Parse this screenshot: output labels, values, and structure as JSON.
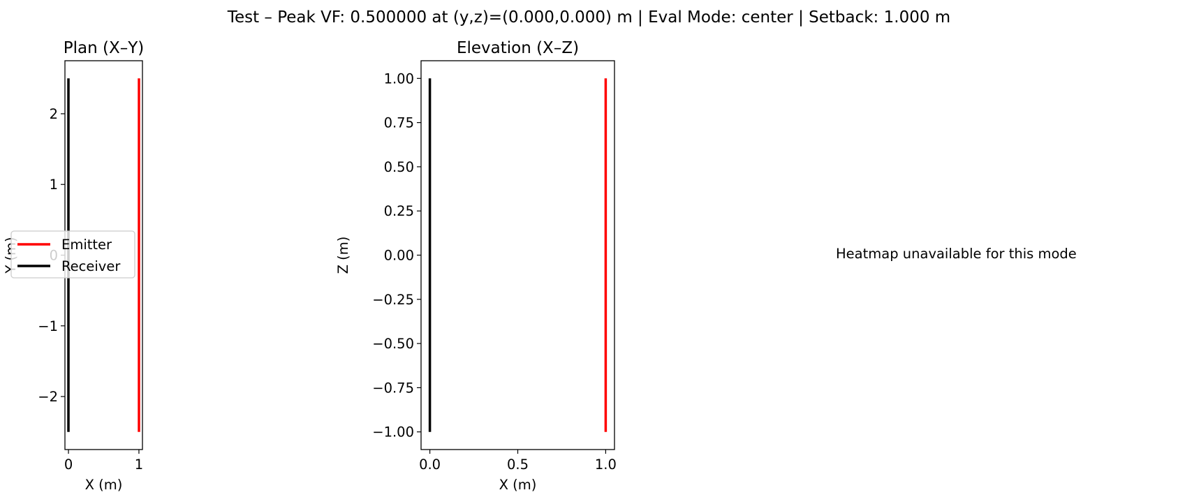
{
  "figure": {
    "suptitle": "Test – Peak VF: 0.500000 at (y,z)=(0.000,0.000) m | Eval Mode: center | Setback: 1.000 m",
    "heatmap_message": "Heatmap unavailable for this mode"
  },
  "colors": {
    "emitter": "#ff0000",
    "receiver": "#000000",
    "axes": "#000000"
  },
  "chart_data": [
    {
      "type": "line",
      "title": "Plan (X–Y)",
      "xlabel": "X (m)",
      "ylabel": "Y (m)",
      "xlim": [
        -0.05,
        1.05
      ],
      "ylim": [
        -2.75,
        2.75
      ],
      "xticks": [
        {
          "v": 0,
          "label": "0"
        },
        {
          "v": 1,
          "label": "1"
        }
      ],
      "yticks": [
        {
          "v": -2,
          "label": "−2"
        },
        {
          "v": -1,
          "label": "−1"
        },
        {
          "v": 0,
          "label": "0"
        },
        {
          "v": 1,
          "label": "1"
        },
        {
          "v": 2,
          "label": "2"
        }
      ],
      "grid": false,
      "legend": {
        "position": "center-left",
        "entries": [
          "Emitter",
          "Receiver"
        ]
      },
      "series": [
        {
          "name": "Emitter",
          "color": "#ff0000",
          "x": [
            1,
            1
          ],
          "y": [
            -2.5,
            2.5
          ]
        },
        {
          "name": "Receiver",
          "color": "#000000",
          "x": [
            0,
            0
          ],
          "y": [
            -2.5,
            2.5
          ]
        }
      ]
    },
    {
      "type": "line",
      "title": "Elevation (X–Z)",
      "xlabel": "X (m)",
      "ylabel": "Z (m)",
      "xlim": [
        -0.05,
        1.05
      ],
      "ylim": [
        -1.1,
        1.1
      ],
      "xticks": [
        {
          "v": 0,
          "label": "0.0"
        },
        {
          "v": 0.5,
          "label": "0.5"
        },
        {
          "v": 1,
          "label": "1.0"
        }
      ],
      "yticks": [
        {
          "v": -1,
          "label": "−1.00"
        },
        {
          "v": -0.75,
          "label": "−0.75"
        },
        {
          "v": -0.5,
          "label": "−0.50"
        },
        {
          "v": -0.25,
          "label": "−0.25"
        },
        {
          "v": 0,
          "label": "0.00"
        },
        {
          "v": 0.25,
          "label": "0.25"
        },
        {
          "v": 0.5,
          "label": "0.50"
        },
        {
          "v": 0.75,
          "label": "0.75"
        },
        {
          "v": 1,
          "label": "1.00"
        }
      ],
      "grid": false,
      "legend": null,
      "series": [
        {
          "name": "Emitter",
          "color": "#ff0000",
          "x": [
            1,
            1
          ],
          "y": [
            -1,
            1
          ]
        },
        {
          "name": "Receiver",
          "color": "#000000",
          "x": [
            0,
            0
          ],
          "y": [
            -1,
            1
          ]
        }
      ]
    }
  ]
}
